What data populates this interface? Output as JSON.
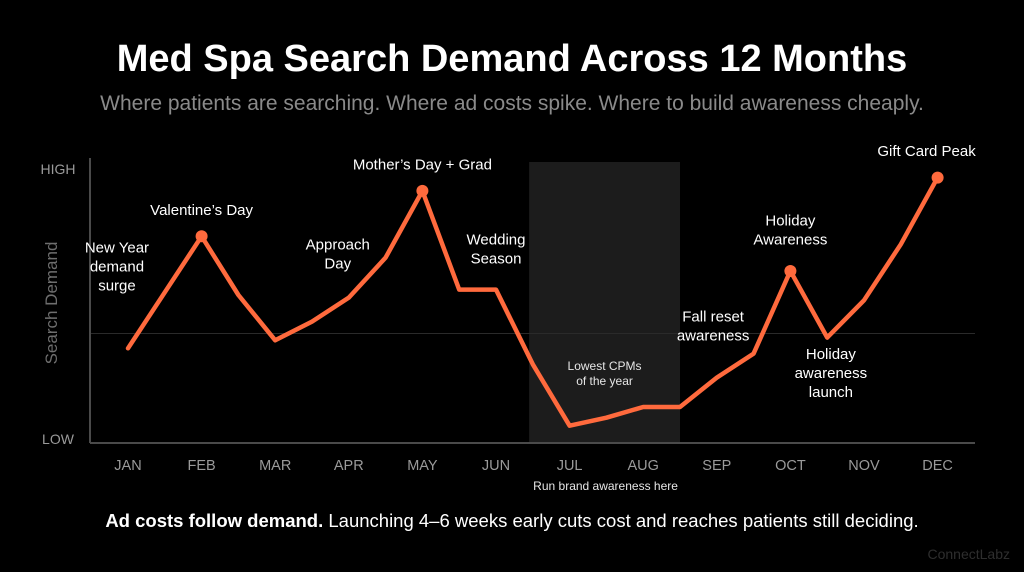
{
  "title": "Med Spa Search Demand Across 12 Months",
  "subtitle": "Where patients are searching. Where ad costs spike. Where to build awareness cheaply.",
  "footer": {
    "bold": "Ad costs follow demand.",
    "rest": " Launching 4–6 weeks early cuts cost and reaches patients still deciding."
  },
  "brand": "ConnectLabz",
  "colors": {
    "line": "#ff6a3d",
    "highlight_band": "#1c1c1c",
    "axis": "#4a4a4a"
  },
  "chart_data": {
    "type": "line",
    "title": "Med Spa Search Demand Across 12 Months",
    "xlabel": "",
    "ylabel": "Search Demand",
    "categories": [
      "JAN",
      "FEB",
      "MAR",
      "APR",
      "MAY",
      "JUN",
      "JUL",
      "AUG",
      "SEP",
      "OCT",
      "NOV",
      "DEC"
    ],
    "y_tick_labels": [
      "LOW",
      "HIGH"
    ],
    "ylim": [
      0,
      100
    ],
    "grid": "single horizontal midline",
    "series": [
      {
        "x": [
          0,
          0.5,
          1,
          1.5,
          2,
          2.5,
          3,
          3.5,
          4,
          4.5,
          5,
          5.5,
          6,
          6.5,
          7,
          7.5,
          8,
          8.5,
          9,
          9.5,
          10,
          10.5,
          11
        ],
        "y": [
          34,
          55,
          76,
          54,
          37,
          44,
          53,
          68,
          93,
          56,
          56,
          28,
          5,
          8,
          12,
          12,
          23,
          32,
          63,
          38,
          52,
          73,
          98
        ]
      }
    ],
    "markers": [
      {
        "x": 1,
        "y": 76
      },
      {
        "x": 4,
        "y": 93
      },
      {
        "x": 9,
        "y": 63
      },
      {
        "x": 11,
        "y": 98
      }
    ],
    "highlight": {
      "from": 5.45,
      "to": 7.5,
      "label": [
        "Lowest CPMs",
        "of the year"
      ],
      "caption": "Run brand awareness here"
    },
    "annotations": [
      {
        "text": [
          "New Year",
          "demand",
          "surge"
        ],
        "x": -0.15,
        "y": 70
      },
      {
        "text": [
          "Valentine’s Day"
        ],
        "x": 1,
        "y": 84
      },
      {
        "text": [
          "Approach",
          "Day"
        ],
        "x": 2.85,
        "y": 71
      },
      {
        "text": [
          "Mother’s Day + Grad"
        ],
        "x": 4,
        "y": 101
      },
      {
        "text": [
          "Wedding",
          "Season"
        ],
        "x": 5.0,
        "y": 73
      },
      {
        "text": [
          "Fall reset",
          "awareness"
        ],
        "x": 7.95,
        "y": 44
      },
      {
        "text": [
          "Holiday",
          "Awareness"
        ],
        "x": 9,
        "y": 80
      },
      {
        "text": [
          "Holiday",
          "awareness",
          "launch"
        ],
        "x": 9.55,
        "y": 30
      },
      {
        "text": [
          "Gift Card Peak"
        ],
        "x": 10.85,
        "y": 106
      }
    ]
  }
}
